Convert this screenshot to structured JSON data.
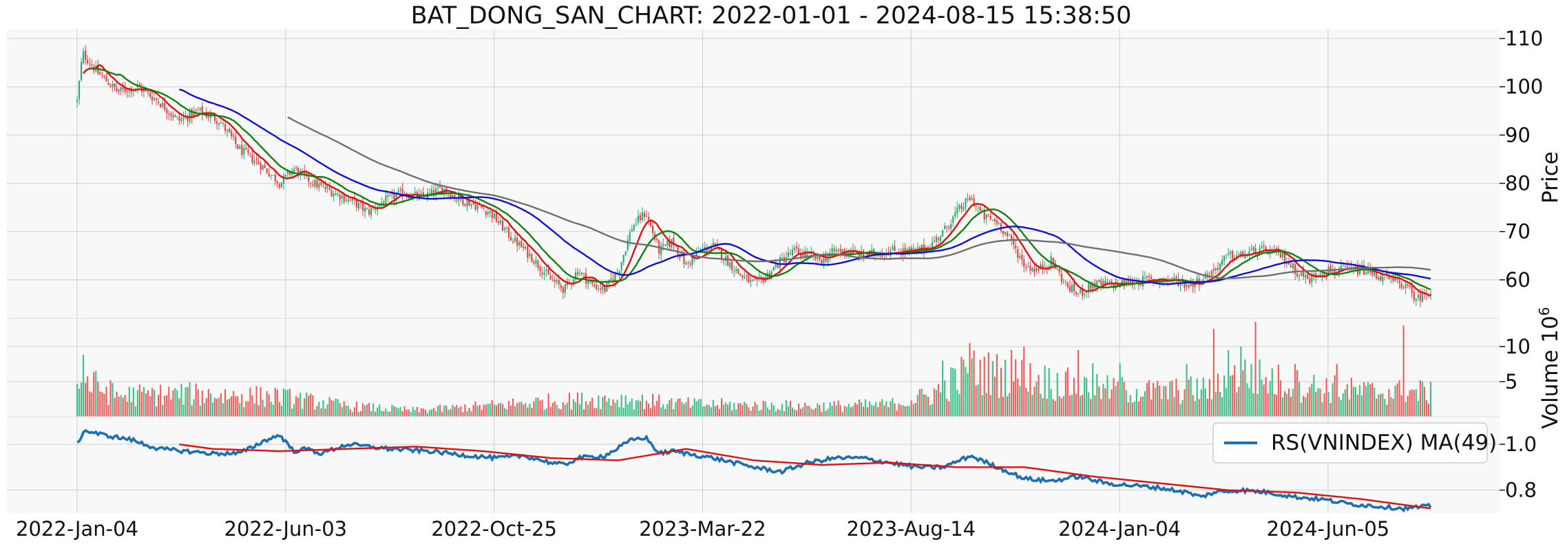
{
  "chart_data": {
    "type": "candlestick",
    "title": "BAT_DONG_SAN_CHART: 2022-01-01 - 2024-08-15 15:38:50",
    "colors": {
      "up": "#26a96c",
      "down": "#f03b3b",
      "vol_up": "#3cbf86",
      "vol_down": "#f25b5b",
      "ma_short": "#e01010",
      "ma_mid": "#108010",
      "ma_long": "#1010d0",
      "ma_longest": "#707070",
      "rs": "#1f6fb0",
      "rs_ma": "#e01010",
      "panel_bg": "#f8f8f8",
      "grid": "#cfcfcf"
    },
    "x_ticks": [
      "2022-Jan-04",
      "2022-Jun-03",
      "2022-Oct-25",
      "2023-Mar-22",
      "2023-Aug-14",
      "2024-Jan-04",
      "2024-Jun-05"
    ],
    "price_panel": {
      "ylabel": "Price",
      "ylim": [
        52,
        112
      ],
      "yticks": [
        "110",
        "100",
        "90",
        "80",
        "70",
        "60"
      ],
      "yticks_values": [
        110,
        100,
        90,
        80,
        70,
        60
      ],
      "anchors": [
        {
          "t": 0,
          "v": 97
        },
        {
          "t": 0.004,
          "v": 107
        },
        {
          "t": 0.015,
          "v": 103
        },
        {
          "t": 0.03,
          "v": 99
        },
        {
          "t": 0.045,
          "v": 100
        },
        {
          "t": 0.06,
          "v": 97
        },
        {
          "t": 0.075,
          "v": 93
        },
        {
          "t": 0.09,
          "v": 95
        },
        {
          "t": 0.105,
          "v": 93
        },
        {
          "t": 0.12,
          "v": 87
        },
        {
          "t": 0.135,
          "v": 84
        },
        {
          "t": 0.15,
          "v": 80
        },
        {
          "t": 0.16,
          "v": 83
        },
        {
          "t": 0.175,
          "v": 80
        },
        {
          "t": 0.19,
          "v": 78
        },
        {
          "t": 0.205,
          "v": 76
        },
        {
          "t": 0.215,
          "v": 74
        },
        {
          "t": 0.225,
          "v": 76
        },
        {
          "t": 0.24,
          "v": 78
        },
        {
          "t": 0.255,
          "v": 77
        },
        {
          "t": 0.27,
          "v": 79
        },
        {
          "t": 0.28,
          "v": 77
        },
        {
          "t": 0.29,
          "v": 76
        },
        {
          "t": 0.305,
          "v": 74
        },
        {
          "t": 0.32,
          "v": 69
        },
        {
          "t": 0.335,
          "v": 65
        },
        {
          "t": 0.35,
          "v": 60
        },
        {
          "t": 0.36,
          "v": 58
        },
        {
          "t": 0.37,
          "v": 62
        },
        {
          "t": 0.38,
          "v": 59
        },
        {
          "t": 0.39,
          "v": 58
        },
        {
          "t": 0.4,
          "v": 62
        },
        {
          "t": 0.41,
          "v": 71
        },
        {
          "t": 0.42,
          "v": 74
        },
        {
          "t": 0.43,
          "v": 66
        },
        {
          "t": 0.44,
          "v": 68
        },
        {
          "t": 0.45,
          "v": 63
        },
        {
          "t": 0.46,
          "v": 66
        },
        {
          "t": 0.47,
          "v": 67
        },
        {
          "t": 0.48,
          "v": 64
        },
        {
          "t": 0.49,
          "v": 61
        },
        {
          "t": 0.5,
          "v": 59
        },
        {
          "t": 0.51,
          "v": 61
        },
        {
          "t": 0.52,
          "v": 64
        },
        {
          "t": 0.53,
          "v": 66
        },
        {
          "t": 0.54,
          "v": 65
        },
        {
          "t": 0.55,
          "v": 64
        },
        {
          "t": 0.56,
          "v": 66
        },
        {
          "t": 0.57,
          "v": 66
        },
        {
          "t": 0.58,
          "v": 65
        },
        {
          "t": 0.6,
          "v": 66
        },
        {
          "t": 0.62,
          "v": 66
        },
        {
          "t": 0.63,
          "v": 67
        },
        {
          "t": 0.64,
          "v": 70
        },
        {
          "t": 0.65,
          "v": 74
        },
        {
          "t": 0.66,
          "v": 77
        },
        {
          "t": 0.67,
          "v": 73
        },
        {
          "t": 0.68,
          "v": 72
        },
        {
          "t": 0.69,
          "v": 68
        },
        {
          "t": 0.7,
          "v": 63
        },
        {
          "t": 0.71,
          "v": 62
        },
        {
          "t": 0.72,
          "v": 64
        },
        {
          "t": 0.73,
          "v": 59
        },
        {
          "t": 0.74,
          "v": 57
        },
        {
          "t": 0.75,
          "v": 59
        },
        {
          "t": 0.77,
          "v": 59
        },
        {
          "t": 0.79,
          "v": 60
        },
        {
          "t": 0.81,
          "v": 60
        },
        {
          "t": 0.82,
          "v": 59
        },
        {
          "t": 0.83,
          "v": 60
        },
        {
          "t": 0.84,
          "v": 62
        },
        {
          "t": 0.85,
          "v": 65
        },
        {
          "t": 0.86,
          "v": 65
        },
        {
          "t": 0.87,
          "v": 66
        },
        {
          "t": 0.88,
          "v": 66
        },
        {
          "t": 0.89,
          "v": 65
        },
        {
          "t": 0.9,
          "v": 62
        },
        {
          "t": 0.91,
          "v": 60
        },
        {
          "t": 0.92,
          "v": 62
        },
        {
          "t": 0.93,
          "v": 62
        },
        {
          "t": 0.94,
          "v": 62
        },
        {
          "t": 0.95,
          "v": 62
        },
        {
          "t": 0.96,
          "v": 61
        },
        {
          "t": 0.97,
          "v": 60
        },
        {
          "t": 0.98,
          "v": 59
        },
        {
          "t": 0.99,
          "v": 56
        },
        {
          "t": 1.0,
          "v": 58
        }
      ]
    },
    "volume_panel": {
      "ylabel": "Volume  10",
      "ylabel_exp": "6",
      "ylim": [
        0,
        14
      ],
      "yticks": [
        "10",
        "5"
      ],
      "yticks_values": [
        10,
        5
      ],
      "anchors": [
        {
          "t": 0,
          "v": 5.5
        },
        {
          "t": 0.03,
          "v": 3.0
        },
        {
          "t": 0.08,
          "v": 3.2
        },
        {
          "t": 0.15,
          "v": 2.8
        },
        {
          "t": 0.2,
          "v": 1.5
        },
        {
          "t": 0.25,
          "v": 0.9
        },
        {
          "t": 0.3,
          "v": 1.5
        },
        {
          "t": 0.35,
          "v": 2.2
        },
        {
          "t": 0.4,
          "v": 2.5
        },
        {
          "t": 0.45,
          "v": 1.8
        },
        {
          "t": 0.5,
          "v": 1.6
        },
        {
          "t": 0.55,
          "v": 1.5
        },
        {
          "t": 0.6,
          "v": 1.7
        },
        {
          "t": 0.63,
          "v": 3.0
        },
        {
          "t": 0.66,
          "v": 6.5
        },
        {
          "t": 0.7,
          "v": 5.5
        },
        {
          "t": 0.75,
          "v": 4.0
        },
        {
          "t": 0.8,
          "v": 3.5
        },
        {
          "t": 0.84,
          "v": 4.0
        },
        {
          "t": 0.86,
          "v": 6.0
        },
        {
          "t": 0.9,
          "v": 4.5
        },
        {
          "t": 0.95,
          "v": 3.5
        },
        {
          "t": 1.0,
          "v": 3.5
        }
      ],
      "spikes": [
        {
          "t": 0.004,
          "v": 8.8
        },
        {
          "t": 0.64,
          "v": 8.0
        },
        {
          "t": 0.66,
          "v": 10.5
        },
        {
          "t": 0.69,
          "v": 9.5
        },
        {
          "t": 0.7,
          "v": 10.0
        },
        {
          "t": 0.74,
          "v": 9.5
        },
        {
          "t": 0.75,
          "v": 7.6
        },
        {
          "t": 0.77,
          "v": 7.6
        },
        {
          "t": 0.82,
          "v": 7.5
        },
        {
          "t": 0.84,
          "v": 12.5
        },
        {
          "t": 0.85,
          "v": 9.5
        },
        {
          "t": 0.86,
          "v": 10.0
        },
        {
          "t": 0.87,
          "v": 13.5
        },
        {
          "t": 0.9,
          "v": 7.5
        },
        {
          "t": 0.93,
          "v": 7.5
        },
        {
          "t": 0.98,
          "v": 13.0
        }
      ]
    },
    "rs_panel": {
      "legend": "RS(VNINDEX) MA(49)",
      "ylim": [
        0.7,
        1.12
      ],
      "yticks": [
        "1.0",
        "0.8"
      ],
      "yticks_values": [
        1.0,
        0.8
      ],
      "anchors": [
        {
          "t": 0,
          "v": 1.0
        },
        {
          "t": 0.005,
          "v": 1.06
        },
        {
          "t": 0.02,
          "v": 1.04
        },
        {
          "t": 0.04,
          "v": 1.02
        },
        {
          "t": 0.06,
          "v": 0.98
        },
        {
          "t": 0.08,
          "v": 0.97
        },
        {
          "t": 0.1,
          "v": 0.96
        },
        {
          "t": 0.12,
          "v": 0.96
        },
        {
          "t": 0.14,
          "v": 1.02
        },
        {
          "t": 0.15,
          "v": 1.04
        },
        {
          "t": 0.16,
          "v": 0.97
        },
        {
          "t": 0.17,
          "v": 0.98
        },
        {
          "t": 0.18,
          "v": 0.96
        },
        {
          "t": 0.2,
          "v": 1.0
        },
        {
          "t": 0.23,
          "v": 0.98
        },
        {
          "t": 0.26,
          "v": 0.97
        },
        {
          "t": 0.29,
          "v": 0.95
        },
        {
          "t": 0.31,
          "v": 0.94
        },
        {
          "t": 0.33,
          "v": 0.95
        },
        {
          "t": 0.35,
          "v": 0.92
        },
        {
          "t": 0.36,
          "v": 0.91
        },
        {
          "t": 0.37,
          "v": 0.94
        },
        {
          "t": 0.39,
          "v": 0.95
        },
        {
          "t": 0.41,
          "v": 1.02
        },
        {
          "t": 0.42,
          "v": 1.03
        },
        {
          "t": 0.43,
          "v": 0.96
        },
        {
          "t": 0.44,
          "v": 0.97
        },
        {
          "t": 0.47,
          "v": 0.94
        },
        {
          "t": 0.5,
          "v": 0.9
        },
        {
          "t": 0.52,
          "v": 0.88
        },
        {
          "t": 0.54,
          "v": 0.92
        },
        {
          "t": 0.56,
          "v": 0.94
        },
        {
          "t": 0.58,
          "v": 0.94
        },
        {
          "t": 0.6,
          "v": 0.92
        },
        {
          "t": 0.62,
          "v": 0.9
        },
        {
          "t": 0.64,
          "v": 0.9
        },
        {
          "t": 0.66,
          "v": 0.95
        },
        {
          "t": 0.68,
          "v": 0.9
        },
        {
          "t": 0.7,
          "v": 0.85
        },
        {
          "t": 0.72,
          "v": 0.84
        },
        {
          "t": 0.74,
          "v": 0.86
        },
        {
          "t": 0.76,
          "v": 0.83
        },
        {
          "t": 0.78,
          "v": 0.82
        },
        {
          "t": 0.8,
          "v": 0.81
        },
        {
          "t": 0.82,
          "v": 0.79
        },
        {
          "t": 0.83,
          "v": 0.77
        },
        {
          "t": 0.84,
          "v": 0.79
        },
        {
          "t": 0.86,
          "v": 0.8
        },
        {
          "t": 0.88,
          "v": 0.79
        },
        {
          "t": 0.9,
          "v": 0.77
        },
        {
          "t": 0.92,
          "v": 0.76
        },
        {
          "t": 0.94,
          "v": 0.74
        },
        {
          "t": 0.96,
          "v": 0.73
        },
        {
          "t": 0.98,
          "v": 0.72
        },
        {
          "t": 1.0,
          "v": 0.73
        }
      ],
      "ma_anchors": [
        {
          "t": 0.075,
          "v": 1.0
        },
        {
          "t": 0.1,
          "v": 0.98
        },
        {
          "t": 0.15,
          "v": 0.97
        },
        {
          "t": 0.2,
          "v": 0.98
        },
        {
          "t": 0.25,
          "v": 0.99
        },
        {
          "t": 0.3,
          "v": 0.97
        },
        {
          "t": 0.35,
          "v": 0.94
        },
        {
          "t": 0.4,
          "v": 0.93
        },
        {
          "t": 0.45,
          "v": 0.98
        },
        {
          "t": 0.5,
          "v": 0.93
        },
        {
          "t": 0.55,
          "v": 0.91
        },
        {
          "t": 0.6,
          "v": 0.92
        },
        {
          "t": 0.65,
          "v": 0.9
        },
        {
          "t": 0.7,
          "v": 0.9
        },
        {
          "t": 0.75,
          "v": 0.86
        },
        {
          "t": 0.8,
          "v": 0.83
        },
        {
          "t": 0.85,
          "v": 0.8
        },
        {
          "t": 0.9,
          "v": 0.79
        },
        {
          "t": 0.95,
          "v": 0.76
        },
        {
          "t": 1.0,
          "v": 0.72
        }
      ]
    },
    "moving_averages": [
      {
        "window": 10,
        "color_key": "ma_short",
        "start_t": 0.005
      },
      {
        "window": 20,
        "color_key": "ma_mid",
        "start_t": 0.01
      },
      {
        "window": 50,
        "color_key": "ma_long",
        "start_t": 0.075
      },
      {
        "window": 100,
        "color_key": "ma_longest",
        "start_t": 0.155
      }
    ],
    "n_bars": 650
  }
}
